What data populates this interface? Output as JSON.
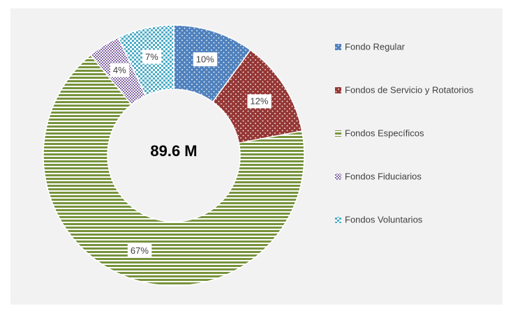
{
  "chart_data": {
    "type": "donut",
    "center_label": "89.6 M",
    "categories": [
      "Fondo  Regular",
      "Fondos  de Servicio  y Rotatorios",
      "Fondos  Específicos",
      "Fondos  Fiduciarios",
      "Fondos  Voluntarios"
    ],
    "values": [
      10,
      12,
      67,
      4,
      7
    ],
    "value_labels": [
      "10%",
      "12%",
      "67%",
      "4%",
      "7%"
    ],
    "colors": [
      "#4f81bd",
      "#953735",
      "#77933c",
      "#8064a2",
      "#4bacc6"
    ],
    "patterns": [
      "dots",
      "dots",
      "hstripes",
      "checker",
      "lightdots"
    ],
    "legend": "right"
  }
}
